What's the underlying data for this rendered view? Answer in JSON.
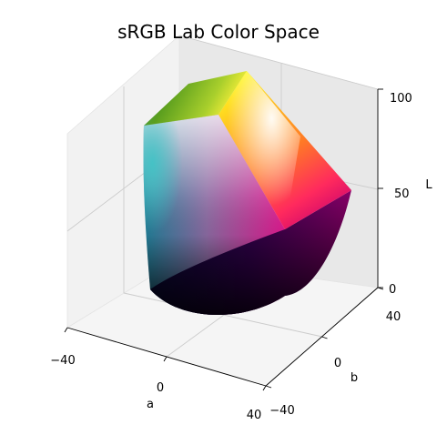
{
  "chart_data": {
    "type": "scatter",
    "title": "sRGB Lab Color Space",
    "xlabel": "a",
    "ylabel": "b",
    "zlabel": "L",
    "xlim": [
      -40,
      40
    ],
    "ylim": [
      -40,
      40
    ],
    "zlim": [
      0,
      100
    ],
    "x_ticks": [
      -40,
      0,
      40
    ],
    "y_ticks": [
      -40,
      0,
      40
    ],
    "z_ticks": [
      0,
      50,
      100
    ],
    "x_tick_labels": [
      "−40",
      "0",
      "40"
    ],
    "y_tick_labels": [
      "−40",
      "0",
      "40"
    ],
    "z_tick_labels": [
      "0",
      "50",
      "100"
    ],
    "grid": true,
    "legend": false,
    "corner_colors": {
      "black": "#000000",
      "white": "#ffffff",
      "red": "#ff2b1f",
      "green": "#2a9a16",
      "blue": "#10104f",
      "yellow": "#ffee1c",
      "magenta": "#ff00e6",
      "cyan": "#35b6bf"
    },
    "pane_color": "#f2f2f2",
    "grid_color": "#cccccc"
  }
}
